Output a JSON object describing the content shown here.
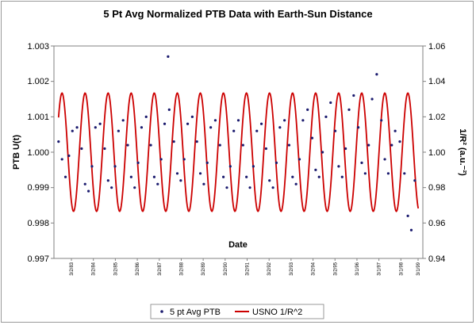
{
  "chart_data": {
    "type": "line",
    "title": "5 Pt Avg Normalized PTB Data with Earth-Sun Distance",
    "xlabel": "Date",
    "ylabel": "PTB U(t)",
    "ylabel_right": "1/R² (a.u.⁻²)",
    "ylim": [
      0.997,
      1.003
    ],
    "ylim_right": [
      0.94,
      1.06
    ],
    "yticks": [
      "1.003",
      "1.002",
      "1.001",
      "1.000",
      "0.999",
      "0.998",
      "0.997"
    ],
    "yticks_right": [
      "1.06",
      "1.04",
      "1.02",
      "1.00",
      "0.98",
      "0.96",
      "0.94"
    ],
    "xticks": [
      "3/2/83",
      "3/2/84",
      "3/2/85",
      "3/2/86",
      "3/2/87",
      "3/2/88",
      "3/2/89",
      "3/2/90",
      "3/2/91",
      "3/2/92",
      "3/2/93",
      "3/2/94",
      "3/2/95",
      "3/1/96",
      "3/1/97",
      "3/1/98",
      "3/1/99"
    ],
    "xlim": [
      1983.0,
      1999.0
    ],
    "series": [
      {
        "name": "5 pt Avg PTB",
        "style": "dots",
        "color": "#1a1a6e",
        "axis": "left",
        "x": [
          1983.2,
          1983.35,
          1983.5,
          1983.65,
          1983.8,
          1984.0,
          1984.2,
          1984.35,
          1984.5,
          1984.65,
          1984.8,
          1985.0,
          1985.2,
          1985.35,
          1985.5,
          1985.65,
          1985.8,
          1986.0,
          1986.2,
          1986.35,
          1986.5,
          1986.65,
          1986.8,
          1987.0,
          1987.2,
          1987.35,
          1987.5,
          1987.65,
          1987.8,
          1987.95,
          1988.0,
          1988.2,
          1988.35,
          1988.5,
          1988.65,
          1988.8,
          1989.0,
          1989.2,
          1989.35,
          1989.5,
          1989.65,
          1989.8,
          1990.0,
          1990.2,
          1990.35,
          1990.5,
          1990.65,
          1990.8,
          1991.0,
          1991.2,
          1991.35,
          1991.5,
          1991.65,
          1991.8,
          1992.0,
          1992.2,
          1992.35,
          1992.5,
          1992.65,
          1992.8,
          1993.0,
          1993.2,
          1993.35,
          1993.5,
          1993.65,
          1993.8,
          1994.0,
          1994.2,
          1994.35,
          1994.5,
          1994.65,
          1994.8,
          1995.0,
          1995.2,
          1995.35,
          1995.5,
          1995.65,
          1995.8,
          1996.0,
          1996.2,
          1996.35,
          1996.5,
          1996.65,
          1996.8,
          1997.0,
          1997.2,
          1997.35,
          1997.5,
          1997.65,
          1997.8,
          1998.0,
          1998.2,
          1998.35,
          1998.5,
          1998.65
        ],
        "values": [
          1.0003,
          0.9998,
          0.9993,
          0.9999,
          1.0006,
          1.0007,
          1.0001,
          0.9991,
          0.9989,
          0.9996,
          1.0007,
          1.0008,
          1.0001,
          0.9992,
          0.999,
          0.9996,
          1.0006,
          1.0009,
          1.0002,
          0.9993,
          0.999,
          0.9997,
          1.0007,
          1.001,
          1.0002,
          0.9993,
          0.9991,
          0.9998,
          1.0008,
          1.0027,
          1.0012,
          1.0003,
          0.9994,
          0.9992,
          0.9998,
          1.0008,
          1.001,
          1.0003,
          0.9994,
          0.9991,
          0.9997,
          1.0007,
          1.0009,
          1.0002,
          0.9993,
          0.999,
          0.9996,
          1.0006,
          1.0009,
          1.0002,
          0.9993,
          0.999,
          0.9996,
          1.0006,
          1.0008,
          1.0001,
          0.9992,
          0.999,
          0.9997,
          1.0007,
          1.0009,
          1.0002,
          0.9993,
          0.9991,
          0.9998,
          1.0009,
          1.0012,
          1.0004,
          0.9995,
          0.9993,
          1.0,
          1.001,
          1.0014,
          1.0006,
          0.9996,
          0.9993,
          1.0001,
          1.0012,
          1.0016,
          1.0007,
          0.9997,
          0.9994,
          1.0002,
          1.0015,
          1.0022,
          1.0009,
          0.9998,
          0.9994,
          1.0002,
          1.0006,
          1.0003,
          0.9994,
          0.9982,
          0.9978,
          0.9992
        ]
      },
      {
        "name": "USNO 1/R^2",
        "style": "line",
        "color": "#cc0000",
        "axis": "right",
        "amplitude": 0.0334,
        "center": 1.0,
        "period_years": 1.0,
        "peak_offset_years": 0.0,
        "x_start": 1983.2,
        "x_end": 1998.8
      }
    ],
    "legend": {
      "placement": "bottom",
      "entries": [
        "5 pt Avg PTB",
        "USNO 1/R^2"
      ]
    }
  }
}
